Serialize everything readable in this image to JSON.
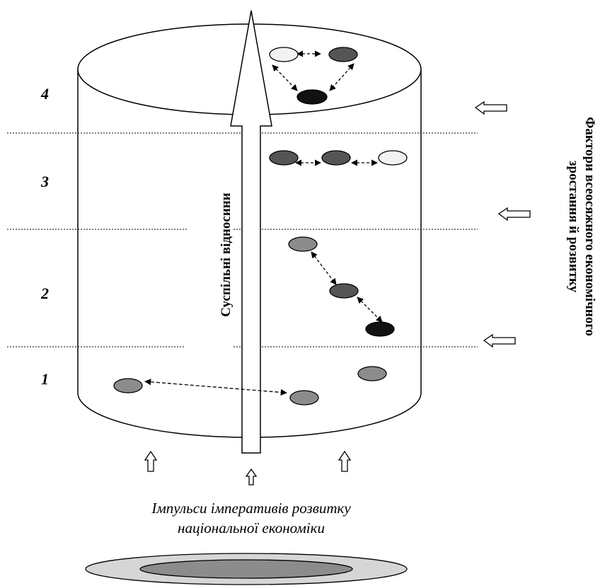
{
  "levels": [
    {
      "label": "4"
    },
    {
      "label": "3"
    },
    {
      "label": "2"
    },
    {
      "label": "1"
    }
  ],
  "central_label": "Суспільні відносини",
  "side_label_line1": "Фактори всеосяжного економічного",
  "side_label_line2": "зростання й розвитку",
  "bottom_label_line1": "Імпульси імперативів розвитку",
  "bottom_label_line2": "національної економіки",
  "colors": {
    "light": "#f2f2f2",
    "mid_gray": "#8c8c8c",
    "dark_gray": "#555555",
    "black": "#111111"
  }
}
